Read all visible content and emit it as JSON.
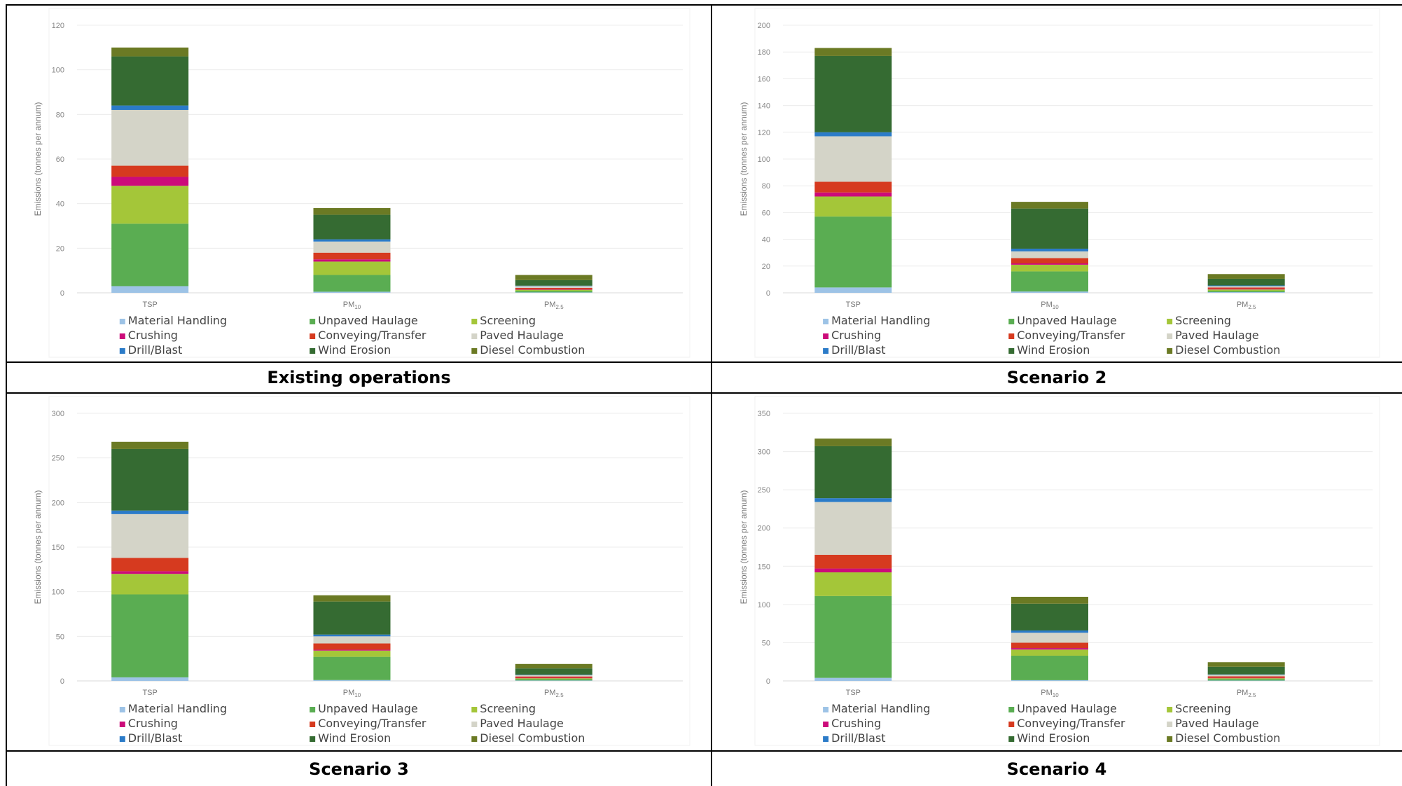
{
  "panels": [
    {
      "caption": "Existing operations"
    },
    {
      "caption": "Scenario 2"
    },
    {
      "caption": "Scenario 3"
    },
    {
      "caption": "Scenario 4"
    }
  ],
  "legend": [
    {
      "label": "Material Handling",
      "color": "#9dc3e6"
    },
    {
      "label": "Unpaved Haulage",
      "color": "#5aad52"
    },
    {
      "label": "Screening",
      "color": "#a4c639"
    },
    {
      "label": "Crushing",
      "color": "#cc0b7a"
    },
    {
      "label": "Conveying/Transfer",
      "color": "#d63a1f"
    },
    {
      "label": "Paved Haulage",
      "color": "#d4d4c8"
    },
    {
      "label": "Drill/Blast",
      "color": "#2b7bc8"
    },
    {
      "label": "Wind Erosion",
      "color": "#356b32"
    },
    {
      "label": "Diesel Combustion",
      "color": "#6b7a24"
    }
  ],
  "chart_data": [
    {
      "type": "bar",
      "stacked": true,
      "ylabel": "Emissions (tonnes per annum)",
      "categories": [
        "TSP",
        "PM10",
        "PM2.5"
      ],
      "ylim": [
        0,
        120
      ],
      "yticks": [
        0,
        20,
        40,
        60,
        80,
        100,
        120
      ],
      "grid": true,
      "legend_position": "bottom",
      "series": [
        {
          "name": "Material Handling",
          "values": [
            3,
            0.5,
            0.2
          ]
        },
        {
          "name": "Unpaved Haulage",
          "values": [
            28,
            7.5,
            0.7
          ]
        },
        {
          "name": "Screening",
          "values": [
            17,
            6,
            0.5
          ]
        },
        {
          "name": "Crushing",
          "values": [
            4,
            1,
            0.3
          ]
        },
        {
          "name": "Conveying/Transfer",
          "values": [
            5,
            3,
            0.5
          ]
        },
        {
          "name": "Paved Haulage",
          "values": [
            25,
            5,
            0.8
          ]
        },
        {
          "name": "Drill/Blast",
          "values": [
            2,
            1,
            0.2
          ]
        },
        {
          "name": "Wind Erosion",
          "values": [
            22,
            11,
            2.5
          ]
        },
        {
          "name": "Diesel Combustion",
          "values": [
            4,
            3,
            2.3
          ]
        }
      ]
    },
    {
      "type": "bar",
      "stacked": true,
      "ylabel": "Emissions (tonnes per annum)",
      "categories": [
        "TSP",
        "PM10",
        "PM2.5"
      ],
      "ylim": [
        0,
        200
      ],
      "yticks": [
        0,
        20,
        40,
        60,
        80,
        100,
        120,
        140,
        160,
        180,
        200
      ],
      "grid": true,
      "legend_position": "bottom",
      "series": [
        {
          "name": "Material Handling",
          "values": [
            4,
            1,
            0.5
          ]
        },
        {
          "name": "Unpaved Haulage",
          "values": [
            53,
            15,
            1
          ]
        },
        {
          "name": "Screening",
          "values": [
            15,
            5,
            1
          ]
        },
        {
          "name": "Crushing",
          "values": [
            3,
            1,
            0.5
          ]
        },
        {
          "name": "Conveying/Transfer",
          "values": [
            8,
            4,
            1
          ]
        },
        {
          "name": "Paved Haulage",
          "values": [
            34,
            5,
            1
          ]
        },
        {
          "name": "Drill/Blast",
          "values": [
            3,
            2,
            0.5
          ]
        },
        {
          "name": "Wind Erosion",
          "values": [
            57,
            30,
            5
          ]
        },
        {
          "name": "Diesel Combustion",
          "values": [
            6,
            5,
            3.5
          ]
        }
      ]
    },
    {
      "type": "bar",
      "stacked": true,
      "ylabel": "Emissions (tonnes per annum)",
      "categories": [
        "TSP",
        "PM10",
        "PM2.5"
      ],
      "ylim": [
        0,
        300
      ],
      "yticks": [
        0,
        50,
        100,
        150,
        200,
        250,
        300
      ],
      "grid": true,
      "legend_position": "bottom",
      "series": [
        {
          "name": "Material Handling",
          "values": [
            4,
            1,
            0.5
          ]
        },
        {
          "name": "Unpaved Haulage",
          "values": [
            93,
            26,
            1.5
          ]
        },
        {
          "name": "Screening",
          "values": [
            23,
            7,
            1
          ]
        },
        {
          "name": "Crushing",
          "values": [
            3,
            1,
            0.5
          ]
        },
        {
          "name": "Conveying/Transfer",
          "values": [
            15,
            7,
            1.5
          ]
        },
        {
          "name": "Paved Haulage",
          "values": [
            49,
            8,
            1.5
          ]
        },
        {
          "name": "Drill/Blast",
          "values": [
            4,
            2,
            0.5
          ]
        },
        {
          "name": "Wind Erosion",
          "values": [
            69,
            37,
            7
          ]
        },
        {
          "name": "Diesel Combustion",
          "values": [
            8,
            7,
            5
          ]
        }
      ]
    },
    {
      "type": "bar",
      "stacked": true,
      "ylabel": "Emissions (tonnes per annum)",
      "categories": [
        "TSP",
        "PM10",
        "PM2.5"
      ],
      "ylim": [
        0,
        350
      ],
      "yticks": [
        0,
        50,
        100,
        150,
        200,
        250,
        300,
        350
      ],
      "grid": true,
      "legend_position": "bottom",
      "series": [
        {
          "name": "Material Handling",
          "values": [
            4,
            1,
            0.5
          ]
        },
        {
          "name": "Unpaved Haulage",
          "values": [
            107,
            32,
            2
          ]
        },
        {
          "name": "Screening",
          "values": [
            31,
            8,
            1
          ]
        },
        {
          "name": "Crushing",
          "values": [
            5,
            2,
            0.5
          ]
        },
        {
          "name": "Conveying/Transfer",
          "values": [
            18,
            7,
            2
          ]
        },
        {
          "name": "Paved Haulage",
          "values": [
            69,
            13,
            2
          ]
        },
        {
          "name": "Drill/Blast",
          "values": [
            5,
            3,
            0.5
          ]
        },
        {
          "name": "Wind Erosion",
          "values": [
            68,
            35,
            10
          ]
        },
        {
          "name": "Diesel Combustion",
          "values": [
            10,
            9,
            6
          ]
        }
      ]
    }
  ]
}
